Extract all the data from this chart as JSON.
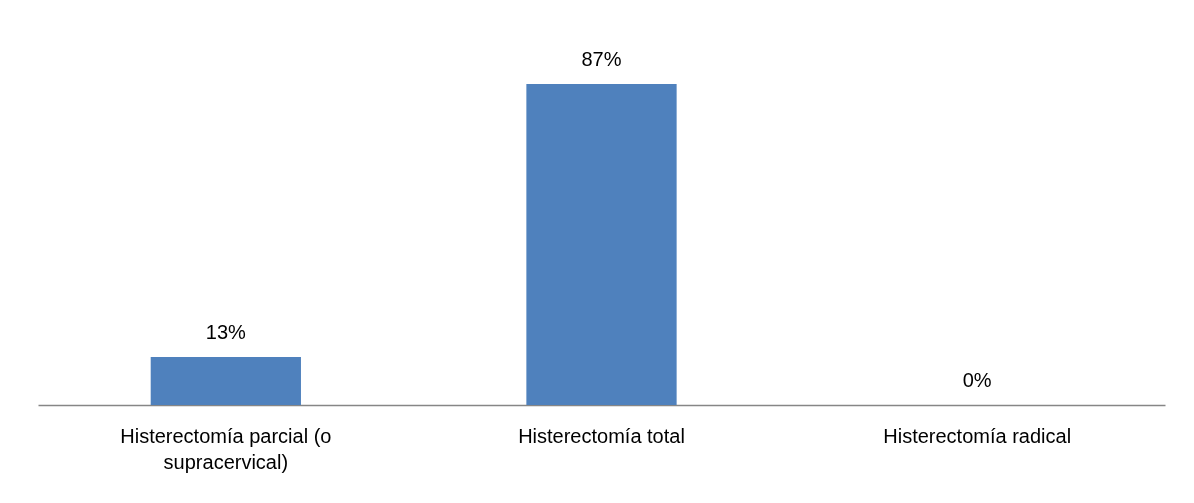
{
  "chart_data": {
    "type": "bar",
    "categories": [
      "Histerectomía parcial (o supracervical)",
      "Histerectomía total",
      "Histerectomía radical"
    ],
    "values": [
      13,
      87,
      0
    ],
    "value_labels": [
      "13%",
      "87%",
      "0%"
    ],
    "color": "#4f81bd",
    "grid": false
  }
}
